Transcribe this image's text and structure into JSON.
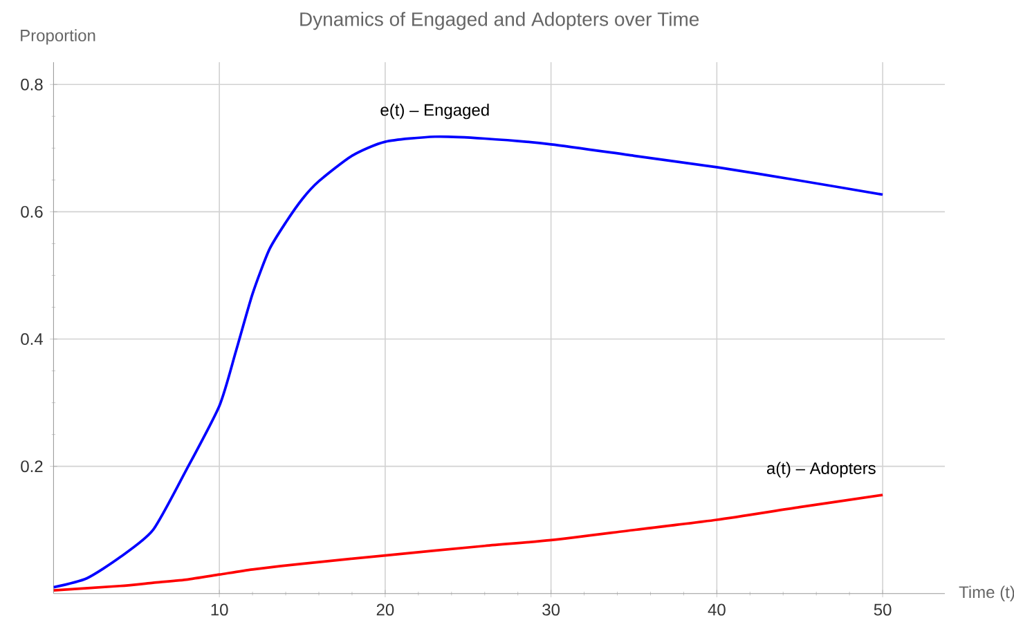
{
  "chart_data": {
    "type": "line",
    "title": "Dynamics of Engaged and Adopters over Time",
    "xlabel": "Time (t)",
    "ylabel": "Proportion",
    "xlim": [
      0,
      53.75
    ],
    "ylim": [
      0,
      0.835
    ],
    "xticks": [
      10,
      20,
      30,
      40,
      50
    ],
    "yticks": [
      0.2,
      0.4,
      0.6,
      0.8
    ],
    "grid": true,
    "legend": false,
    "series": [
      {
        "name": "e(t) – Engaged",
        "color": "#0000ff",
        "x": [
          0,
          2,
          4,
          6,
          8,
          10,
          11,
          12,
          13,
          14,
          15,
          16,
          18,
          20,
          23,
          26,
          30,
          35,
          40,
          45,
          50
        ],
        "values": [
          0.01,
          0.024,
          0.057,
          0.1,
          0.194,
          0.295,
          0.381,
          0.471,
          0.54,
          0.583,
          0.62,
          0.648,
          0.688,
          0.71,
          0.718,
          0.715,
          0.706,
          0.688,
          0.67,
          0.649,
          0.627
        ]
      },
      {
        "name": "a(t) – Adopters",
        "color": "#ff0000",
        "x": [
          0,
          4,
          6,
          8,
          10,
          12,
          15,
          20,
          26,
          30,
          35,
          40,
          45,
          50
        ],
        "values": [
          0.005,
          0.012,
          0.017,
          0.022,
          0.03,
          0.038,
          0.047,
          0.06,
          0.075,
          0.084,
          0.1,
          0.116,
          0.136,
          0.155
        ]
      }
    ]
  }
}
